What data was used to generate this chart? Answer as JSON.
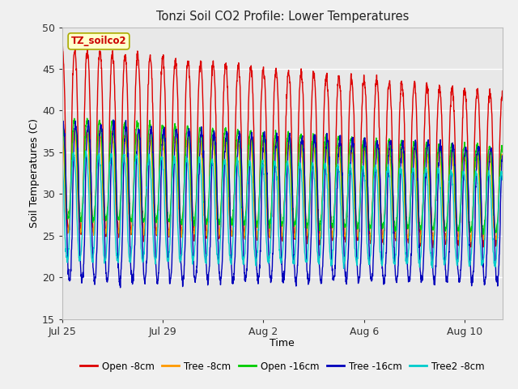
{
  "title": "Tonzi Soil CO2 Profile: Lower Temperatures",
  "xlabel": "Time",
  "ylabel": "Soil Temperatures (C)",
  "ylim": [
    15,
    50
  ],
  "yticks": [
    15,
    20,
    25,
    30,
    35,
    40,
    45,
    50
  ],
  "fig_bg_color": "#f0f0f0",
  "plot_bg_color": "#e8e8e8",
  "grid_color": "#ffffff",
  "series": {
    "Open -8cm": {
      "color": "#dd0000"
    },
    "Tree -8cm": {
      "color": "#ff9900"
    },
    "Open -16cm": {
      "color": "#00cc00"
    },
    "Tree -16cm": {
      "color": "#0000bb"
    },
    "Tree2 -8cm": {
      "color": "#00cccc"
    }
  },
  "watermark_text": "TZ_soilco2",
  "watermark_color": "#cc0000",
  "watermark_bg": "#ffffcc",
  "watermark_edge": "#aaaa00",
  "xtick_vals": [
    0,
    4,
    8,
    12,
    16
  ],
  "xtick_labels": [
    "Jul 25",
    "Jul 29",
    "Aug 2",
    "Aug 6",
    "Aug 10"
  ],
  "total_days": 17.5,
  "n_points": 2000,
  "period": 0.5
}
